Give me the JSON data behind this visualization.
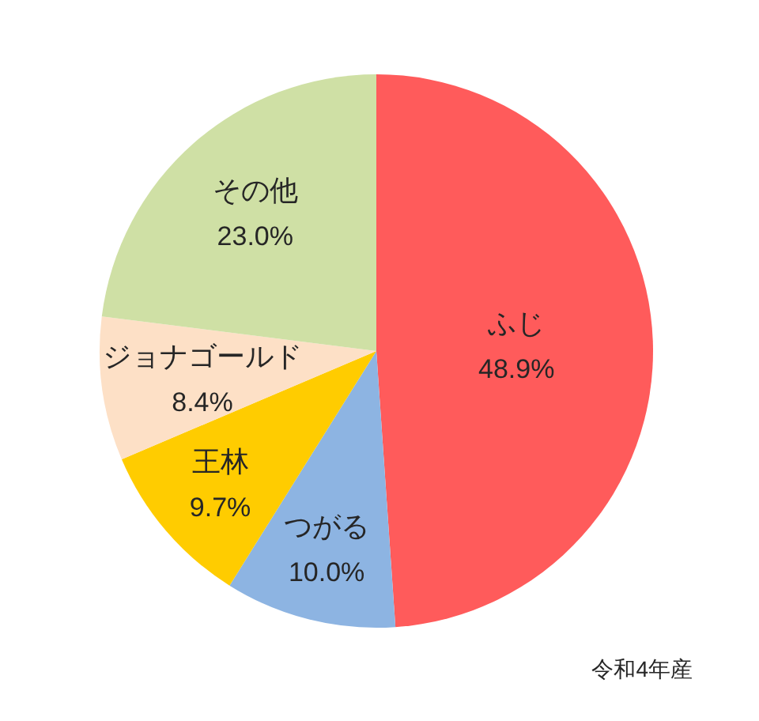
{
  "chart_data": {
    "type": "pie",
    "categories": [
      "ふじ",
      "つがる",
      "王林",
      "ジョナゴールド",
      "その他"
    ],
    "values": [
      48.9,
      10.0,
      9.7,
      8.4,
      23.0
    ],
    "colors": [
      "#ff5b5b",
      "#8db4e2",
      "#ffcc00",
      "#fde0c6",
      "#cfe0a5"
    ],
    "value_labels": [
      "48.9%",
      "10.0%",
      "9.7%",
      "8.4%",
      "23.0%"
    ],
    "annotations": [
      "令和4年産"
    ]
  }
}
